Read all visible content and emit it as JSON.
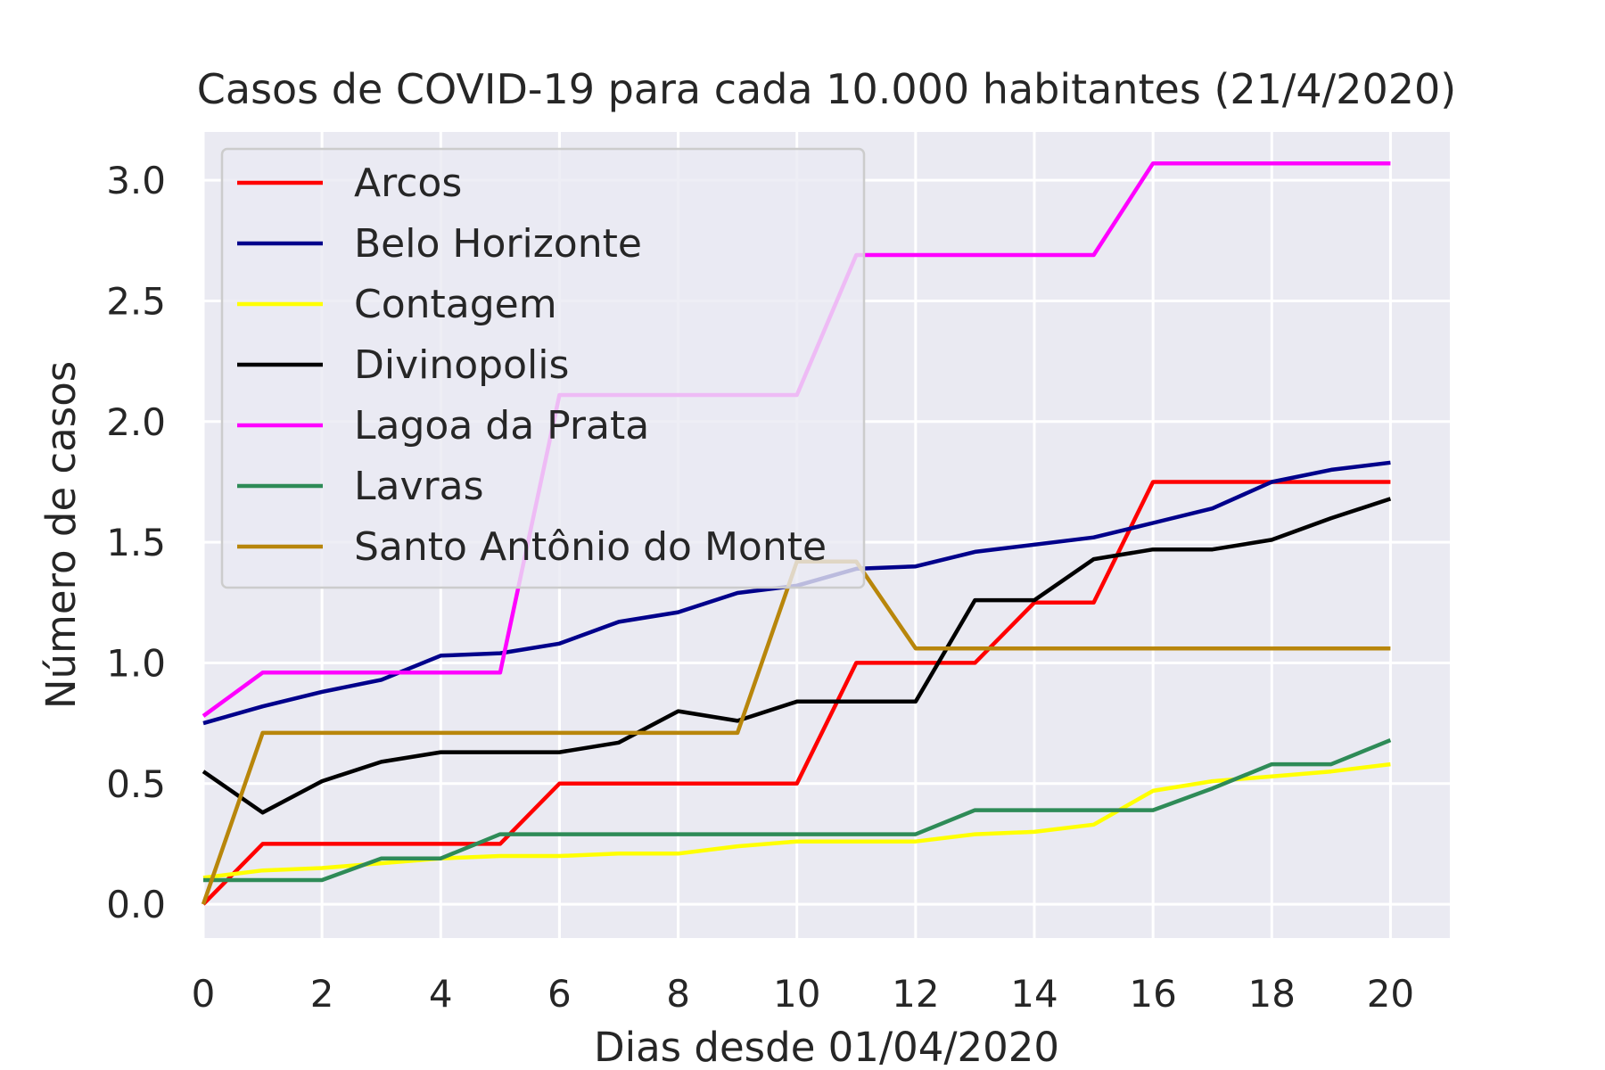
{
  "chart_data": {
    "type": "line",
    "title": "Casos de COVID-19 para cada 10.000 habitantes (21/4/2020)",
    "xlabel": "Dias desde 01/04/2020",
    "ylabel": "Número de casos",
    "xlim": [
      0,
      21
    ],
    "ylim": [
      -0.14,
      3.2
    ],
    "xticks": [
      0,
      2,
      4,
      6,
      8,
      10,
      12,
      14,
      16,
      18,
      20
    ],
    "xtick_labels": [
      "0",
      "2",
      "4",
      "6",
      "8",
      "10",
      "12",
      "14",
      "16",
      "18",
      "20"
    ],
    "yticks": [
      0.0,
      0.5,
      1.0,
      1.5,
      2.0,
      2.5,
      3.0
    ],
    "ytick_labels": [
      "0.0",
      "0.5",
      "1.0",
      "1.5",
      "2.0",
      "2.5",
      "3.0"
    ],
    "grid": true,
    "background": "#eaeaf2",
    "legend_position": "upper-left",
    "x": [
      0,
      1,
      2,
      3,
      4,
      5,
      6,
      7,
      8,
      9,
      10,
      11,
      12,
      13,
      14,
      15,
      16,
      17,
      18,
      19,
      20
    ],
    "series": [
      {
        "name": "Arcos",
        "color": "#ff0000",
        "values": [
          0.0,
          0.25,
          0.25,
          0.25,
          0.25,
          0.25,
          0.5,
          0.5,
          0.5,
          0.5,
          0.5,
          1.0,
          1.0,
          1.0,
          1.25,
          1.25,
          1.75,
          1.75,
          1.75,
          1.75,
          1.75
        ]
      },
      {
        "name": "Belo Horizonte",
        "color": "#00008b",
        "values": [
          0.75,
          0.82,
          0.88,
          0.93,
          1.03,
          1.04,
          1.08,
          1.17,
          1.21,
          1.29,
          1.32,
          1.39,
          1.4,
          1.46,
          1.49,
          1.52,
          1.58,
          1.64,
          1.75,
          1.8,
          1.83
        ]
      },
      {
        "name": "Contagem",
        "color": "#ffff00",
        "values": [
          0.11,
          0.14,
          0.15,
          0.17,
          0.19,
          0.2,
          0.2,
          0.21,
          0.21,
          0.24,
          0.26,
          0.26,
          0.26,
          0.29,
          0.3,
          0.33,
          0.47,
          0.51,
          0.53,
          0.55,
          0.58
        ]
      },
      {
        "name": "Divinopolis",
        "color": "#000000",
        "values": [
          0.55,
          0.38,
          0.51,
          0.59,
          0.63,
          0.63,
          0.63,
          0.67,
          0.8,
          0.76,
          0.84,
          0.84,
          0.84,
          1.26,
          1.26,
          1.43,
          1.47,
          1.47,
          1.51,
          1.6,
          1.68
        ]
      },
      {
        "name": "Lagoa da Prata",
        "color": "#ff00ff",
        "values": [
          0.78,
          0.96,
          0.96,
          0.96,
          0.96,
          0.96,
          2.11,
          2.11,
          2.11,
          2.11,
          2.11,
          2.69,
          2.69,
          2.69,
          2.69,
          2.69,
          3.07,
          3.07,
          3.07,
          3.07,
          3.07
        ]
      },
      {
        "name": "Lavras",
        "color": "#2e8b57",
        "values": [
          0.1,
          0.1,
          0.1,
          0.19,
          0.19,
          0.29,
          0.29,
          0.29,
          0.29,
          0.29,
          0.29,
          0.29,
          0.29,
          0.39,
          0.39,
          0.39,
          0.39,
          0.48,
          0.58,
          0.58,
          0.68
        ]
      },
      {
        "name": "Santo Antônio do Monte",
        "color": "#b8860b",
        "values": [
          0.0,
          0.71,
          0.71,
          0.71,
          0.71,
          0.71,
          0.71,
          0.71,
          0.71,
          0.71,
          1.42,
          1.42,
          1.06,
          1.06,
          1.06,
          1.06,
          1.06,
          1.06,
          1.06,
          1.06,
          1.06
        ]
      }
    ]
  }
}
